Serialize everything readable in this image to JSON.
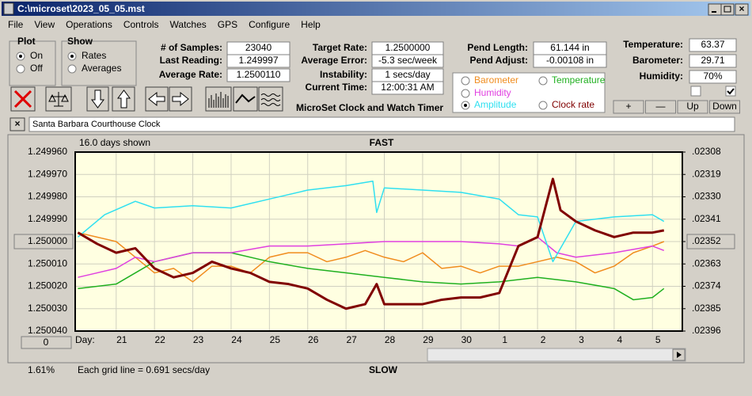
{
  "window": {
    "title": "C:\\microset\\2023_05_05.mst"
  },
  "menu": [
    "File",
    "View",
    "Operations",
    "Controls",
    "Watches",
    "GPS",
    "Configure",
    "Help"
  ],
  "plot_group": {
    "title": "Plot",
    "options": [
      {
        "label": "On",
        "checked": true
      },
      {
        "label": "Off",
        "checked": false
      }
    ]
  },
  "show_group": {
    "title": "Show",
    "options": [
      {
        "label": "Rates",
        "checked": true
      },
      {
        "label": "Averages",
        "checked": false
      }
    ]
  },
  "fields_1": [
    {
      "label": "# of Samples:",
      "value": "23040"
    },
    {
      "label": "Last Reading:",
      "value": "1.249997"
    },
    {
      "label": "Average Rate:",
      "value": "1.2500110"
    }
  ],
  "fields_2": [
    {
      "label": "Target Rate:",
      "value": "1.2500000"
    },
    {
      "label": "Average Error:",
      "value": "-5.3 sec/week"
    },
    {
      "label": "Instability:",
      "value": "1 secs/day"
    },
    {
      "label": "Current Time:",
      "value": "12:00:31 AM"
    }
  ],
  "fields_3": [
    {
      "label": "Pend Length:",
      "value": "61.144 in"
    },
    {
      "label": "Pend Adjust:",
      "value": "-0.00108 in"
    }
  ],
  "fields_4": [
    {
      "label": "Temperature:",
      "value": "63.37"
    },
    {
      "label": "Barometer:",
      "value": "29.71"
    },
    {
      "label": "Humidity:",
      "value": "70%"
    }
  ],
  "checkboxes": [
    false,
    true
  ],
  "app_name": "MicroSet Clock and Watch Timer",
  "buttons": [
    "+",
    "—",
    "Up",
    "Down"
  ],
  "clock_name": "Santa Barbara Courthouse Clock",
  "chart_data": {
    "type": "line",
    "top_label": "FAST",
    "bottom_label": "SLOW",
    "days_shown": "16.0 days shown",
    "x_label": "Day:",
    "grid_note": "Each grid line = 0.691 secs/day",
    "percent": "1.61%",
    "offset_button": "0",
    "xlim": [
      19.93,
      35.78
    ],
    "xticks": [
      21,
      22,
      23,
      24,
      25,
      26,
      27,
      28,
      29,
      30,
      {
        "value": 31,
        "label": "1"
      },
      {
        "value": 32,
        "label": "2"
      },
      {
        "value": 33,
        "label": "3"
      },
      {
        "value": 34,
        "label": "4"
      },
      {
        "value": 35,
        "label": "5"
      }
    ],
    "ylim": [
      1.25004,
      1.24996
    ],
    "yticks": [
      {
        "value": 1.24996,
        "label": "1.249960"
      },
      {
        "value": 1.24997,
        "label": "1.249970"
      },
      {
        "value": 1.24998,
        "label": "1.249980"
      },
      {
        "value": 1.24999,
        "label": "1.249990"
      },
      {
        "value": 1.25,
        "label": "1.250000"
      },
      {
        "value": 1.25001,
        "label": "1.250010"
      },
      {
        "value": 1.25002,
        "label": "1.250020"
      },
      {
        "value": 1.25003,
        "label": "1.250030"
      },
      {
        "value": 1.25004,
        "label": "1.250040"
      }
    ],
    "y2lim": [
      0.02396,
      0.02308
    ],
    "y2ticks": [
      {
        "value": 0.02308,
        "label": ".02308"
      },
      {
        "value": 0.02319,
        "label": ".02319"
      },
      {
        "value": 0.0233,
        "label": ".02330"
      },
      {
        "value": 0.02341,
        "label": ".02341"
      },
      {
        "value": 0.02352,
        "label": ".02352"
      },
      {
        "value": 0.02363,
        "label": ".02363"
      },
      {
        "value": 0.02374,
        "label": ".02374"
      },
      {
        "value": 0.02385,
        "label": ".02385"
      },
      {
        "value": 0.02396,
        "label": ".02396"
      }
    ],
    "grid": true,
    "series": [
      {
        "name": "Barometer",
        "color": "#f08c1e",
        "checked": false,
        "x": [
          20,
          20.5,
          21,
          21.5,
          22,
          22.5,
          23,
          23.5,
          24,
          24.5,
          25,
          25.5,
          26,
          26.5,
          27,
          27.5,
          28,
          28.5,
          29,
          29.5,
          30,
          30.5,
          31,
          31.5,
          32,
          32.5,
          33,
          33.5,
          34,
          34.5,
          35,
          35.3
        ],
        "values": [
          1.249996,
          1.249998,
          1.25,
          1.250007,
          1.250014,
          1.250012,
          1.250018,
          1.250011,
          1.250011,
          1.250014,
          1.250007,
          1.250005,
          1.250005,
          1.250009,
          1.250007,
          1.250004,
          1.250007,
          1.250009,
          1.250005,
          1.250012,
          1.250011,
          1.250014,
          1.250011,
          1.250011,
          1.250009,
          1.250007,
          1.250009,
          1.250014,
          1.250011,
          1.250005,
          1.250002,
          1.25
        ]
      },
      {
        "name": "Temperature",
        "color": "#20b020",
        "checked": false,
        "x": [
          20,
          21,
          22,
          23,
          24,
          25,
          26,
          27,
          28,
          29,
          30,
          31,
          32,
          33,
          34,
          34.5,
          35,
          35.3
        ],
        "values": [
          1.250021,
          1.250019,
          1.250009,
          1.250005,
          1.250005,
          1.250009,
          1.250012,
          1.250014,
          1.250016,
          1.250018,
          1.250019,
          1.250018,
          1.250016,
          1.250018,
          1.250021,
          1.250026,
          1.250025,
          1.250021
        ]
      },
      {
        "name": "Humidity",
        "color": "#e040e0",
        "checked": false,
        "x": [
          20,
          20.5,
          21,
          21.5,
          22,
          22.5,
          23,
          24,
          25,
          26,
          27,
          28,
          29,
          30,
          31,
          31.5,
          32,
          32.5,
          33,
          34,
          35,
          35.3
        ],
        "values": [
          1.250016,
          1.250014,
          1.250012,
          1.250007,
          1.250009,
          1.250007,
          1.250005,
          1.250005,
          1.250002,
          1.250002,
          1.250001,
          1.25,
          1.25,
          1.25,
          1.250001,
          1.250002,
          1.249998,
          1.250005,
          1.250007,
          1.250005,
          1.250002,
          1.250004
        ]
      },
      {
        "name": "Amplitude",
        "color": "#30e0f0",
        "checked": true,
        "x": [
          20,
          20.7,
          21.5,
          22,
          23,
          24,
          25,
          26,
          27,
          27.7,
          27.8,
          28,
          29,
          30,
          31,
          31.5,
          32,
          32.4,
          33,
          34,
          35,
          35.3
        ],
        "values": [
          1.249998,
          1.249988,
          1.249982,
          1.249985,
          1.249984,
          1.249985,
          1.249981,
          1.249977,
          1.249975,
          1.249973,
          1.249987,
          1.249976,
          1.249977,
          1.249978,
          1.249981,
          1.249988,
          1.249989,
          1.250009,
          1.249991,
          1.249989,
          1.249988,
          1.249991
        ]
      },
      {
        "name": "Clock rate",
        "color": "#800000",
        "checked": false,
        "x": [
          20,
          20.5,
          21,
          21.5,
          22,
          22.5,
          23,
          23.5,
          24,
          24.5,
          25,
          25.5,
          26,
          26.5,
          27,
          27.5,
          27.8,
          28,
          28.5,
          29,
          29.5,
          30,
          30.5,
          31,
          31.5,
          32,
          32.4,
          32.6,
          33,
          33.5,
          34,
          34.5,
          35,
          35.3
        ],
        "values": [
          1.249996,
          1.250001,
          1.250005,
          1.250003,
          1.250012,
          1.250016,
          1.250014,
          1.250009,
          1.250012,
          1.250014,
          1.250018,
          1.250019,
          1.250021,
          1.250026,
          1.25003,
          1.250028,
          1.250019,
          1.250028,
          1.250028,
          1.250028,
          1.250026,
          1.250025,
          1.250025,
          1.250023,
          1.250002,
          1.249998,
          1.249972,
          1.249986,
          1.249991,
          1.249995,
          1.249998,
          1.249996,
          1.249996,
          1.249995
        ]
      }
    ]
  }
}
